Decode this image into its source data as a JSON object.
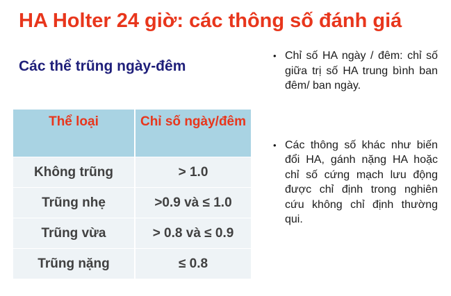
{
  "title": "HA Holter 24 giờ: các thông số đánh giá",
  "subtitle": "Các thể trũng ngày-đêm",
  "table": {
    "headers": [
      "Thể loại",
      "Chỉ số ngày/đêm"
    ],
    "rows": [
      [
        "Không trũng",
        "> 1.0"
      ],
      [
        "Trũng nhẹ",
        ">0.9 và  ≤ 1.0"
      ],
      [
        "Trũng vừa",
        "> 0.8 và  ≤ 0.9"
      ],
      [
        "Trũng nặng",
        "≤ 0.8"
      ]
    ]
  },
  "bullets": [
    "Chỉ số HA ngày / đêm: chỉ số giữa trị số HA trung bình ban đêm/ ban ngày.",
    "Các thông số khác như biến đổi HA, gánh nặng HA hoặc chỉ số cứng mạch lưu động được chỉ định trong nghiên cứu không chỉ định thường qui."
  ]
}
